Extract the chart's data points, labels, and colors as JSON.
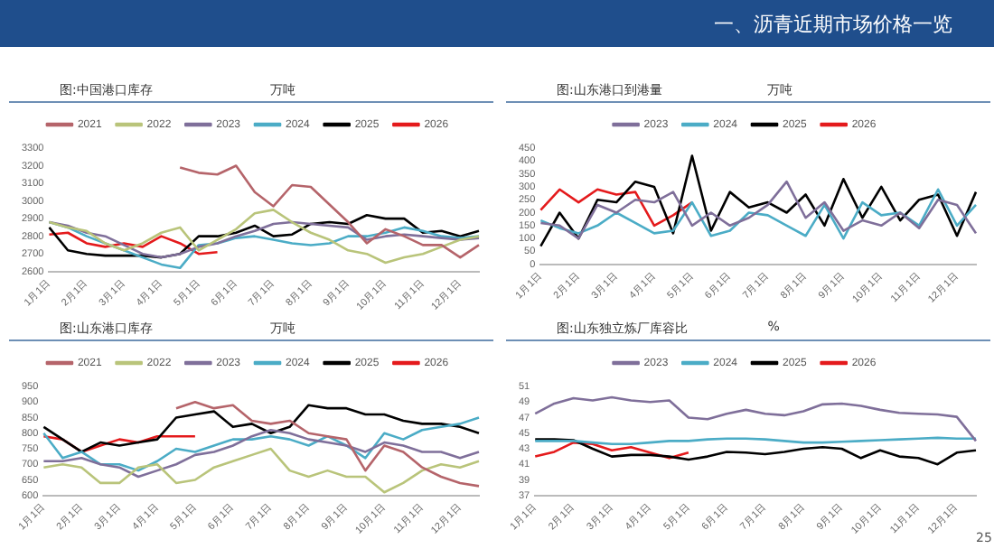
{
  "chart_data": [
    {
      "type": "line",
      "title": "图:中国港口库存",
      "subtitle": "万吨",
      "annotations": [
        "一、沥青近期市场价格一览"
      ],
      "legend": "top",
      "grid": false,
      "categories": [
        "1月1日",
        null,
        "2月1日",
        null,
        "3月1日",
        null,
        "4月1日",
        null,
        "5月1日",
        null,
        "6月1日",
        null,
        "7月1日",
        null,
        "8月1日",
        null,
        "9月1日",
        null,
        "10月1日",
        null,
        "11月1日",
        null,
        "12月1日",
        null
      ],
      "ylim": [
        2600,
        3300
      ],
      "yticks": [
        2600,
        2700,
        2800,
        2900,
        3000,
        3100,
        3200,
        3300
      ],
      "series": [
        {
          "name": "2021",
          "color": "#b5646a",
          "values": [
            null,
            null,
            null,
            null,
            null,
            null,
            null,
            3190,
            3160,
            3150,
            3200,
            3050,
            2970,
            3090,
            3080,
            2980,
            2880,
            2760,
            2840,
            2800,
            2750,
            2750,
            2680,
            2750
          ]
        },
        {
          "name": "2022",
          "color": "#b9c47a",
          "values": [
            2880,
            2850,
            2830,
            2760,
            2720,
            2760,
            2820,
            2850,
            2720,
            2780,
            2840,
            2930,
            2950,
            2880,
            2820,
            2780,
            2720,
            2700,
            2650,
            2680,
            2700,
            2740,
            2780,
            2800
          ]
        },
        {
          "name": "2023",
          "color": "#7f6f9a",
          "values": [
            2880,
            2860,
            2820,
            2800,
            2750,
            2700,
            2680,
            2700,
            2740,
            2760,
            2800,
            2830,
            2870,
            2880,
            2870,
            2860,
            2850,
            2780,
            2800,
            2810,
            2800,
            2790,
            2780,
            2790
          ]
        },
        {
          "name": "2024",
          "color": "#4bacc6",
          "values": [
            2880,
            2850,
            2800,
            2760,
            2720,
            2680,
            2640,
            2620,
            2750,
            2760,
            2790,
            2800,
            2780,
            2760,
            2750,
            2760,
            2800,
            2800,
            2820,
            2850,
            2830,
            2800,
            2790,
            2800
          ]
        },
        {
          "name": "2025",
          "color": "#000000",
          "values": [
            2850,
            2720,
            2700,
            2690,
            2690,
            2690,
            2680,
            2700,
            2800,
            2800,
            2820,
            2860,
            2800,
            2810,
            2870,
            2880,
            2870,
            2920,
            2900,
            2900,
            2820,
            2830,
            2800,
            2830
          ]
        },
        {
          "name": "2026",
          "color": "#e41a1c",
          "values": [
            2810,
            2820,
            2760,
            2740,
            2760,
            2740,
            2800,
            2760,
            2700,
            2710,
            null,
            null,
            null,
            null,
            null,
            null,
            null,
            null,
            null,
            null,
            null,
            null,
            null,
            null
          ]
        }
      ]
    },
    {
      "type": "line",
      "title": "图:山东港口到港量",
      "subtitle": "万吨",
      "legend": "top",
      "grid": false,
      "categories": [
        "1月1日",
        null,
        "2月1日",
        null,
        "3月1日",
        null,
        "4月1日",
        null,
        "5月1日",
        null,
        "6月1日",
        null,
        "7月1日",
        null,
        "8月1日",
        null,
        "9月1日",
        null,
        "10月1日",
        null,
        "11月1日",
        null,
        "12月1日",
        null
      ],
      "ylim": [
        0,
        450
      ],
      "yticks": [
        0,
        50,
        100,
        150,
        200,
        250,
        300,
        350,
        400,
        450
      ],
      "series": [
        {
          "name": "2023",
          "color": "#7f6f9a",
          "values": [
            160,
            150,
            100,
            230,
            200,
            250,
            240,
            280,
            150,
            200,
            150,
            180,
            230,
            320,
            180,
            240,
            130,
            170,
            150,
            200,
            140,
            250,
            230,
            120
          ]
        },
        {
          "name": "2024",
          "color": "#4bacc6",
          "values": [
            170,
            140,
            120,
            150,
            200,
            160,
            120,
            130,
            240,
            110,
            130,
            200,
            190,
            150,
            110,
            230,
            100,
            240,
            190,
            200,
            150,
            290,
            150,
            230
          ]
        },
        {
          "name": "2025",
          "color": "#000000",
          "values": [
            70,
            200,
            100,
            250,
            240,
            320,
            300,
            120,
            420,
            130,
            280,
            220,
            240,
            200,
            270,
            150,
            330,
            180,
            300,
            170,
            250,
            270,
            110,
            280
          ]
        },
        {
          "name": "2026",
          "color": "#e41a1c",
          "values": [
            210,
            290,
            240,
            290,
            270,
            280,
            150,
            190,
            240,
            null,
            null,
            null,
            null,
            null,
            null,
            null,
            null,
            null,
            null,
            null,
            null,
            null,
            null,
            null
          ]
        }
      ]
    },
    {
      "type": "line",
      "title": "图:山东港口库存",
      "subtitle": "万吨",
      "legend": "top",
      "grid": false,
      "categories": [
        "1月1日",
        null,
        "2月1日",
        null,
        "3月1日",
        null,
        "4月1日",
        null,
        "5月1日",
        null,
        "6月1日",
        null,
        "7月1日",
        null,
        "8月1日",
        null,
        "9月1日",
        null,
        "10月1日",
        null,
        "11月1日",
        null,
        "12月1日",
        null
      ],
      "ylim": [
        600,
        950
      ],
      "yticks": [
        600,
        650,
        700,
        750,
        800,
        850,
        900,
        950
      ],
      "series": [
        {
          "name": "2021",
          "color": "#b5646a",
          "values": [
            null,
            null,
            null,
            null,
            null,
            null,
            null,
            880,
            900,
            880,
            890,
            840,
            830,
            840,
            800,
            790,
            780,
            680,
            760,
            740,
            690,
            660,
            640,
            630
          ]
        },
        {
          "name": "2022",
          "color": "#b9c47a",
          "values": [
            690,
            700,
            690,
            640,
            640,
            690,
            700,
            640,
            650,
            690,
            710,
            730,
            750,
            680,
            660,
            680,
            660,
            660,
            610,
            640,
            680,
            700,
            690,
            710
          ]
        },
        {
          "name": "2023",
          "color": "#7f6f9a",
          "values": [
            710,
            710,
            720,
            700,
            690,
            660,
            680,
            700,
            730,
            740,
            760,
            790,
            810,
            800,
            780,
            770,
            760,
            740,
            770,
            760,
            740,
            740,
            720,
            740
          ]
        },
        {
          "name": "2024",
          "color": "#4bacc6",
          "values": [
            800,
            720,
            740,
            700,
            700,
            680,
            710,
            750,
            740,
            760,
            780,
            780,
            790,
            780,
            760,
            790,
            760,
            720,
            800,
            780,
            810,
            820,
            830,
            850
          ]
        },
        {
          "name": "2025",
          "color": "#000000",
          "values": [
            820,
            780,
            740,
            770,
            760,
            770,
            780,
            850,
            860,
            870,
            820,
            830,
            800,
            820,
            890,
            880,
            880,
            860,
            860,
            840,
            830,
            830,
            820,
            800
          ]
        },
        {
          "name": "2026",
          "color": "#e41a1c",
          "values": [
            790,
            780,
            740,
            760,
            780,
            770,
            790,
            790,
            790,
            null,
            null,
            null,
            null,
            null,
            null,
            null,
            null,
            null,
            null,
            null,
            null,
            null,
            null,
            null
          ]
        }
      ]
    },
    {
      "type": "line",
      "title": "图:山东独立炼厂库容比",
      "subtitle": "%",
      "annotations": [
        "25"
      ],
      "legend": "top",
      "grid": false,
      "categories": [
        "1月1日",
        null,
        "2月1日",
        null,
        "3月1日",
        null,
        "4月1日",
        null,
        "5月1日",
        null,
        "6月1日",
        null,
        "7月1日",
        null,
        "8月1日",
        null,
        "9月1日",
        null,
        "10月1日",
        null,
        "11月1日",
        null,
        "12月1日",
        null
      ],
      "ylim": [
        37,
        51
      ],
      "yticks": [
        37,
        39,
        41,
        43,
        45,
        47,
        49,
        51
      ],
      "series": [
        {
          "name": "2023",
          "color": "#7f6f9a",
          "values": [
            47.5,
            48.8,
            49.5,
            49.2,
            49.6,
            49.2,
            49.0,
            49.2,
            47.0,
            46.8,
            47.5,
            48.0,
            47.5,
            47.3,
            47.8,
            48.7,
            48.8,
            48.5,
            48.0,
            47.6,
            47.5,
            47.4,
            47.1,
            44.0
          ]
        },
        {
          "name": "2024",
          "color": "#4bacc6",
          "values": [
            44.0,
            44.0,
            44.0,
            43.8,
            43.6,
            43.6,
            43.8,
            44.0,
            44.0,
            44.2,
            44.3,
            44.3,
            44.2,
            44.0,
            43.8,
            43.8,
            43.9,
            44.0,
            44.1,
            44.2,
            44.3,
            44.4,
            44.3,
            44.3
          ]
        },
        {
          "name": "2025",
          "color": "#000000",
          "values": [
            44.2,
            44.2,
            44.1,
            43.0,
            42.0,
            42.2,
            42.2,
            42.0,
            41.6,
            42.0,
            42.6,
            42.5,
            42.3,
            42.6,
            43.0,
            43.2,
            43.0,
            41.8,
            42.8,
            42.0,
            41.8,
            41.0,
            42.5,
            42.8
          ]
        },
        {
          "name": "2026",
          "color": "#e41a1c",
          "values": [
            42.0,
            42.6,
            43.8,
            43.6,
            42.8,
            43.2,
            42.5,
            41.8,
            42.5,
            null,
            null,
            null,
            null,
            null,
            null,
            null,
            null,
            null,
            null,
            null,
            null,
            null,
            null,
            null
          ]
        }
      ]
    }
  ]
}
